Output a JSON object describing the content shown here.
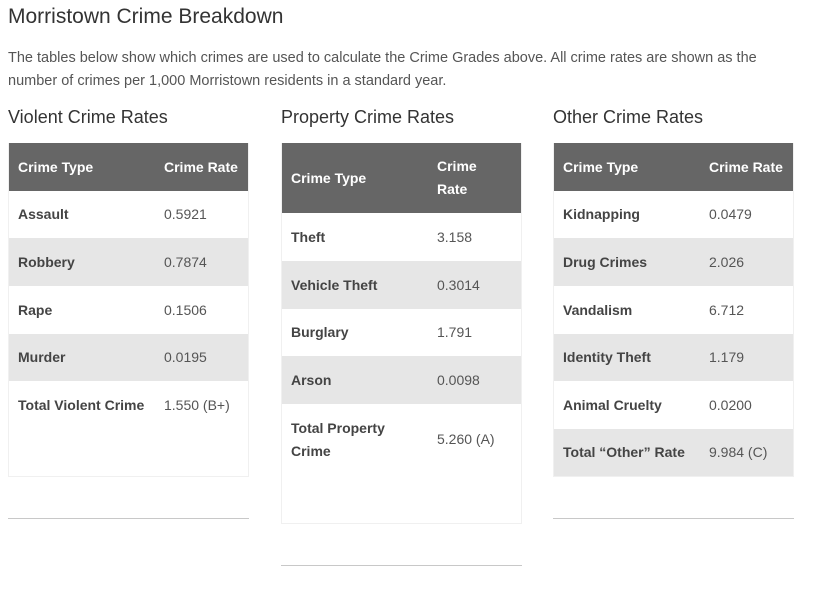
{
  "page": {
    "title": "Morristown Crime Breakdown",
    "intro": "The tables below show which crimes are used to calculate the Crime Grades above. All crime rates are shown as the number of crimes per 1,000 Morristown residents in a standard year."
  },
  "violent": {
    "title": "Violent Crime Rates",
    "header": {
      "type": "Crime Type",
      "rate": "Crime Rate"
    },
    "rows": [
      {
        "type": "Assault",
        "rate": "0.5921"
      },
      {
        "type": "Robbery",
        "rate": "0.7874"
      },
      {
        "type": "Rape",
        "rate": "0.1506"
      },
      {
        "type": "Murder",
        "rate": "0.0195"
      },
      {
        "type": "Total Violent Crime",
        "rate": "1.550 (B+)"
      }
    ]
  },
  "property": {
    "title": "Property Crime Rates",
    "header": {
      "type": "Crime Type",
      "rate": "Crime Rate"
    },
    "rows": [
      {
        "type": "Theft",
        "rate": "3.158"
      },
      {
        "type": "Vehicle Theft",
        "rate": "0.3014"
      },
      {
        "type": "Burglary",
        "rate": "1.791"
      },
      {
        "type": "Arson",
        "rate": "0.0098"
      },
      {
        "type": "Total Property Crime",
        "rate": "5.260 (A)"
      }
    ]
  },
  "other": {
    "title": "Other Crime Rates",
    "header": {
      "type": "Crime Type",
      "rate": "Crime Rate"
    },
    "rows": [
      {
        "type": "Kidnapping",
        "rate": "0.0479"
      },
      {
        "type": "Drug Crimes",
        "rate": "2.026"
      },
      {
        "type": "Vandalism",
        "rate": "6.712"
      },
      {
        "type": "Identity Theft",
        "rate": "1.179"
      },
      {
        "type": "Animal Cruelty",
        "rate": "0.0200"
      },
      {
        "type": "Total “Other” Rate",
        "rate": "9.984 (C)"
      }
    ]
  }
}
